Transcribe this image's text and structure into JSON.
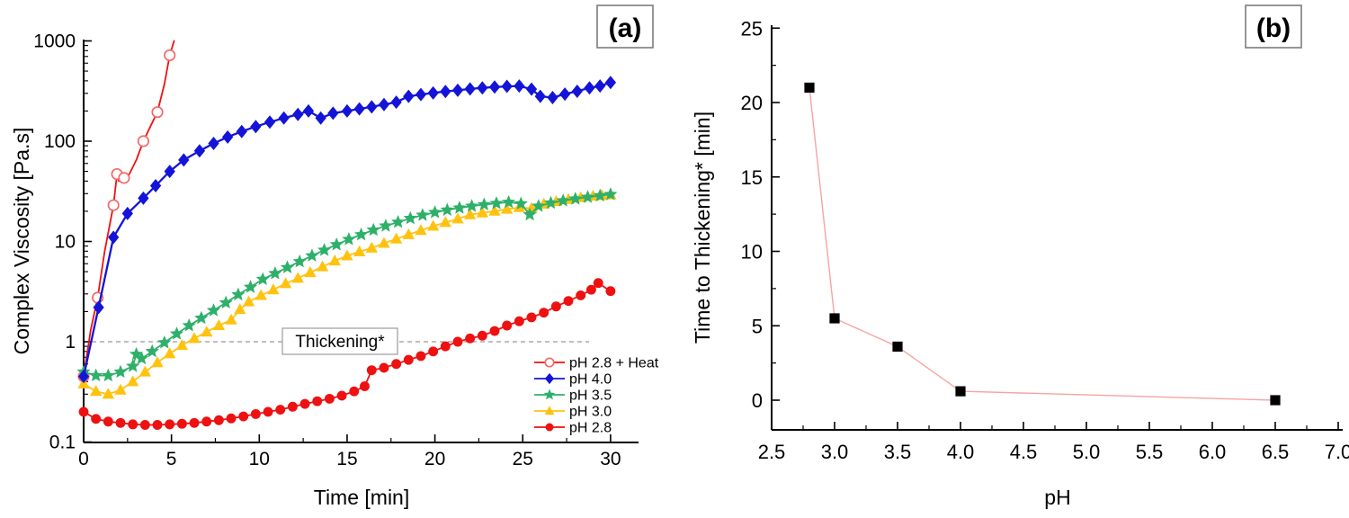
{
  "background": "#ffffff",
  "panels": {
    "a": {
      "label": "(a)"
    },
    "b": {
      "label": "(b)"
    }
  },
  "chart_data": [
    {
      "id": "a",
      "type": "line",
      "panel_label": "(a)",
      "xlabel": "Time [min]",
      "ylabel": "Complex Viscosity [Pa.s]",
      "x_ticks": [
        0,
        5,
        10,
        15,
        20,
        25,
        30
      ],
      "x_minor_ticks": [
        2.5,
        7.5,
        12.5,
        17.5,
        22.5,
        27.5
      ],
      "xlim": [
        0,
        31.6
      ],
      "y_scale": "log",
      "y_ticks": [
        "0.1",
        "1",
        "10",
        "100",
        "1000"
      ],
      "ylim": [
        0.1,
        1000
      ],
      "grid": false,
      "legend_position": "inside-bottom-right",
      "annotation": {
        "label": "Thickening*",
        "y": 1
      },
      "series": [
        {
          "name": "pH 2.8 + Heat",
          "color": "#ee1111",
          "marker": "open-circle",
          "marker_stroke": "#f26a6a",
          "marker_idx": [
            0,
            2,
            4,
            5,
            7,
            10,
            12,
            14
          ],
          "points": [
            [
              0,
              0.45
            ],
            [
              0.4,
              1.3
            ],
            [
              0.8,
              2.75
            ],
            [
              1.2,
              8
            ],
            [
              1.7,
              23
            ],
            [
              1.9,
              47
            ],
            [
              2.0,
              40
            ],
            [
              2.3,
              43
            ],
            [
              2.6,
              47
            ],
            [
              3.0,
              65
            ],
            [
              3.4,
              100
            ],
            [
              3.8,
              140
            ],
            [
              4.2,
              195
            ],
            [
              4.6,
              370
            ],
            [
              4.9,
              720
            ],
            [
              5.15,
              1000
            ]
          ]
        },
        {
          "name": "pH 4.0",
          "color": "#1414d8",
          "marker": "diamond",
          "points": [
            [
              0,
              0.45
            ],
            [
              0.85,
              2.2
            ],
            [
              1.7,
              11
            ],
            [
              2.5,
              19
            ],
            [
              3.4,
              27
            ],
            [
              4.1,
              36
            ],
            [
              4.9,
              50
            ],
            [
              5.7,
              65
            ],
            [
              6.6,
              80
            ],
            [
              7.4,
              95
            ],
            [
              8.2,
              110
            ],
            [
              9.0,
              125
            ],
            [
              9.8,
              140
            ],
            [
              10.6,
              155
            ],
            [
              11.4,
              170
            ],
            [
              12.2,
              185
            ],
            [
              12.8,
              200
            ],
            [
              13.5,
              170
            ],
            [
              14.2,
              190
            ],
            [
              15.0,
              200
            ],
            [
              15.7,
              210
            ],
            [
              16.4,
              220
            ],
            [
              17.1,
              232
            ],
            [
              17.8,
              245
            ],
            [
              18.5,
              280
            ],
            [
              19.2,
              292
            ],
            [
              19.9,
              303
            ],
            [
              20.6,
              313
            ],
            [
              21.3,
              322
            ],
            [
              22.0,
              332
            ],
            [
              22.7,
              340
            ],
            [
              23.4,
              347
            ],
            [
              24.1,
              352
            ],
            [
              24.8,
              355
            ],
            [
              25.5,
              330
            ],
            [
              26.0,
              280
            ],
            [
              26.7,
              272
            ],
            [
              27.4,
              295
            ],
            [
              28.1,
              315
            ],
            [
              28.8,
              340
            ],
            [
              29.4,
              355
            ],
            [
              30,
              385
            ]
          ]
        },
        {
          "name": "pH 3.5",
          "color": "#2fb06a",
          "marker": "star",
          "points": [
            [
              0,
              0.5
            ],
            [
              0.7,
              0.46
            ],
            [
              1.4,
              0.46
            ],
            [
              2.1,
              0.5
            ],
            [
              2.8,
              0.57
            ],
            [
              3.0,
              0.75
            ],
            [
              3.3,
              0.68
            ],
            [
              3.9,
              0.8
            ],
            [
              4.6,
              0.98
            ],
            [
              5.3,
              1.2
            ],
            [
              6.0,
              1.45
            ],
            [
              6.7,
              1.72
            ],
            [
              7.4,
              2.05
            ],
            [
              8.1,
              2.45
            ],
            [
              8.8,
              2.95
            ],
            [
              9.5,
              3.5
            ],
            [
              10.2,
              4.2
            ],
            [
              10.9,
              4.8
            ],
            [
              11.6,
              5.5
            ],
            [
              12.3,
              6.3
            ],
            [
              13.0,
              7.2
            ],
            [
              13.7,
              8.2
            ],
            [
              14.4,
              9.3
            ],
            [
              15.1,
              10.5
            ],
            [
              15.8,
              11.7
            ],
            [
              16.5,
              13
            ],
            [
              17.2,
              14.3
            ],
            [
              17.9,
              15.6
            ],
            [
              18.6,
              17
            ],
            [
              19.3,
              18.3
            ],
            [
              20.0,
              19.5
            ],
            [
              20.7,
              20.6
            ],
            [
              21.4,
              21.6
            ],
            [
              22.1,
              22.5
            ],
            [
              22.8,
              23.3
            ],
            [
              23.5,
              24
            ],
            [
              24.2,
              24.6
            ],
            [
              24.9,
              23.8
            ],
            [
              25.4,
              18.5
            ],
            [
              25.9,
              22.5
            ],
            [
              26.6,
              24.2
            ],
            [
              27.3,
              25.5
            ],
            [
              28.0,
              26.6
            ],
            [
              28.7,
              27.6
            ],
            [
              29.4,
              28.6
            ],
            [
              30,
              29.5
            ]
          ]
        },
        {
          "name": "pH 3.0",
          "color": "#ffc20e",
          "marker": "triangle",
          "points": [
            [
              0,
              0.38
            ],
            [
              0.7,
              0.32
            ],
            [
              1.4,
              0.3
            ],
            [
              2.1,
              0.33
            ],
            [
              2.8,
              0.4
            ],
            [
              3.5,
              0.5
            ],
            [
              4.2,
              0.62
            ],
            [
              4.9,
              0.76
            ],
            [
              5.6,
              0.92
            ],
            [
              6.3,
              1.08
            ],
            [
              7.0,
              1.25
            ],
            [
              7.7,
              1.45
            ],
            [
              8.4,
              1.65
            ],
            [
              8.9,
              2.1
            ],
            [
              9.4,
              2.5
            ],
            [
              10.1,
              2.9
            ],
            [
              10.8,
              3.3
            ],
            [
              11.5,
              3.8
            ],
            [
              12.2,
              4.3
            ],
            [
              12.9,
              4.9
            ],
            [
              13.6,
              5.6
            ],
            [
              14.3,
              6.4
            ],
            [
              15.0,
              7.2
            ],
            [
              15.7,
              7.9
            ],
            [
              16.4,
              8.6
            ],
            [
              17.1,
              9.6
            ],
            [
              17.8,
              10.6
            ],
            [
              18.5,
              11.7
            ],
            [
              19.2,
              12.9
            ],
            [
              19.9,
              14.2
            ],
            [
              20.6,
              15.5
            ],
            [
              21.3,
              16.8
            ],
            [
              22.0,
              18.5
            ],
            [
              22.7,
              19.3
            ],
            [
              23.4,
              20.1
            ],
            [
              24.1,
              21
            ],
            [
              24.8,
              21.8
            ],
            [
              25.5,
              21.4
            ],
            [
              26.2,
              23.6
            ],
            [
              26.9,
              25
            ],
            [
              27.6,
              26.3
            ],
            [
              28.3,
              27.4
            ],
            [
              29.0,
              28.3
            ],
            [
              29.5,
              28.8
            ],
            [
              30,
              29.2
            ]
          ]
        },
        {
          "name": "pH 2.8",
          "color": "#ee1111",
          "marker": "circle",
          "points": [
            [
              0,
              0.2
            ],
            [
              0.7,
              0.17
            ],
            [
              1.4,
              0.16
            ],
            [
              2.1,
              0.155
            ],
            [
              2.8,
              0.15
            ],
            [
              3.5,
              0.148
            ],
            [
              4.2,
              0.148
            ],
            [
              4.9,
              0.15
            ],
            [
              5.6,
              0.152
            ],
            [
              6.3,
              0.155
            ],
            [
              7.0,
              0.16
            ],
            [
              7.7,
              0.165
            ],
            [
              8.4,
              0.172
            ],
            [
              9.1,
              0.18
            ],
            [
              9.8,
              0.19
            ],
            [
              10.5,
              0.2
            ],
            [
              11.2,
              0.21
            ],
            [
              11.9,
              0.225
            ],
            [
              12.6,
              0.24
            ],
            [
              13.3,
              0.255
            ],
            [
              14.0,
              0.27
            ],
            [
              14.7,
              0.29
            ],
            [
              15.4,
              0.32
            ],
            [
              16.0,
              0.36
            ],
            [
              16.4,
              0.52
            ],
            [
              17.1,
              0.55
            ],
            [
              17.8,
              0.6
            ],
            [
              18.5,
              0.66
            ],
            [
              19.2,
              0.72
            ],
            [
              19.9,
              0.8
            ],
            [
              20.6,
              0.9
            ],
            [
              21.3,
              1.0
            ],
            [
              22.0,
              1.08
            ],
            [
              22.7,
              1.15
            ],
            [
              23.4,
              1.28
            ],
            [
              24.1,
              1.45
            ],
            [
              24.8,
              1.6
            ],
            [
              25.5,
              1.75
            ],
            [
              26.2,
              1.95
            ],
            [
              26.9,
              2.25
            ],
            [
              27.6,
              2.55
            ],
            [
              28.3,
              2.9
            ],
            [
              28.9,
              3.3
            ],
            [
              29.3,
              3.85
            ],
            [
              30,
              3.2
            ]
          ]
        }
      ]
    },
    {
      "id": "b",
      "type": "line",
      "panel_label": "(b)",
      "xlabel": "pH",
      "ylabel": "Time to Thickening* [min]",
      "x_ticks": [
        "2.5",
        "3.0",
        "3.5",
        "4.0",
        "4.5",
        "5.0",
        "5.5",
        "6.0",
        "6.5",
        "7.0"
      ],
      "xlim": [
        2.5,
        7.0
      ],
      "y_scale": "linear",
      "y_ticks": [
        0,
        5,
        10,
        15,
        20,
        25
      ],
      "ylim": [
        -2,
        25.5
      ],
      "grid": false,
      "series": [
        {
          "name": "Time to Thickening*",
          "color": "#f7a3a3",
          "marker": "square",
          "marker_color": "#000000",
          "points": [
            [
              2.8,
              21
            ],
            [
              3.0,
              5.5
            ],
            [
              3.5,
              3.6
            ],
            [
              4.0,
              0.6
            ],
            [
              6.5,
              0
            ]
          ]
        }
      ]
    }
  ]
}
